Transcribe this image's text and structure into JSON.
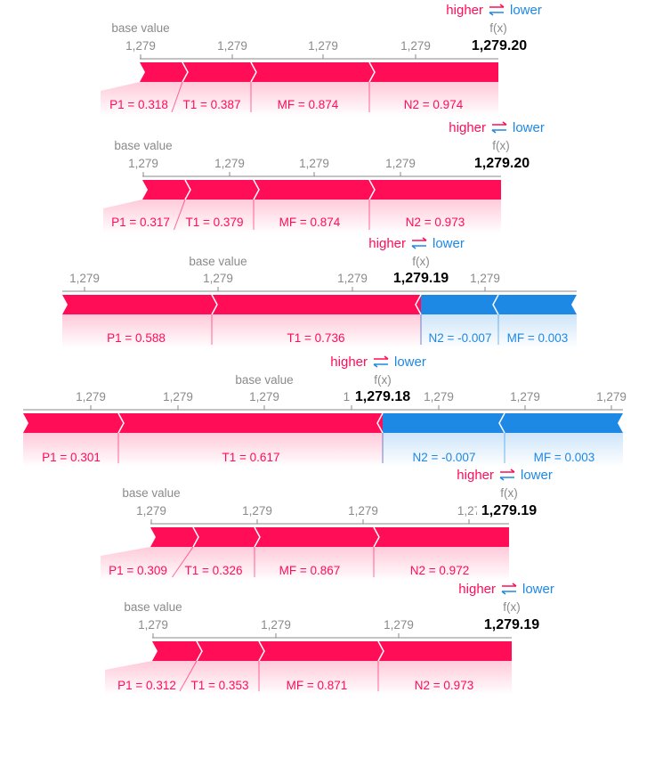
{
  "legend": {
    "higher": "higher",
    "lower": "lower"
  },
  "axis_labels": {
    "base": "base value",
    "fx": "f(x)"
  },
  "colors": {
    "positive": "#ff0d57",
    "negative": "#1e88e5",
    "axis": "#8a8a8a",
    "text": "#000000"
  },
  "chart_data": [
    {
      "type": "bar",
      "fx_label": "1,279.20",
      "ticks": [
        "1,279",
        "1,279",
        "1,279",
        "1,279"
      ],
      "features": [
        {
          "label": "P1 = 0.318",
          "effect": "positive"
        },
        {
          "label": "T1 = 0.387",
          "effect": "positive"
        },
        {
          "label": "MF = 0.874",
          "effect": "positive"
        },
        {
          "label": "N2 = 0.974",
          "effect": "positive"
        }
      ]
    },
    {
      "type": "bar",
      "fx_label": "1,279.20",
      "ticks": [
        "1,279",
        "1,279",
        "1,279",
        "1,279"
      ],
      "features": [
        {
          "label": "P1 = 0.317",
          "effect": "positive"
        },
        {
          "label": "T1 = 0.379",
          "effect": "positive"
        },
        {
          "label": "MF = 0.874",
          "effect": "positive"
        },
        {
          "label": "N2 = 0.973",
          "effect": "positive"
        }
      ]
    },
    {
      "type": "bar",
      "fx_label": "1,279.19",
      "ticks": [
        "1,279",
        "1,279",
        "1,279",
        "1,279"
      ],
      "features": [
        {
          "label": "P1 = 0.588",
          "effect": "positive"
        },
        {
          "label": "T1 = 0.736",
          "effect": "positive"
        },
        {
          "label": "N2 = -0.007",
          "effect": "negative"
        },
        {
          "label": "MF = 0.003",
          "effect": "negative"
        }
      ]
    },
    {
      "type": "bar",
      "fx_label": "1,279.18",
      "ticks": [
        "1,279",
        "1,279",
        "1,279",
        "1,2",
        "1,279",
        "1,279",
        "1,279"
      ],
      "features": [
        {
          "label": "P1 = 0.301",
          "effect": "positive"
        },
        {
          "label": "T1 = 0.617",
          "effect": "positive"
        },
        {
          "label": "N2 = -0.007",
          "effect": "negative"
        },
        {
          "label": "MF = 0.003",
          "effect": "negative"
        }
      ]
    },
    {
      "type": "bar",
      "fx_label": "1,279.19",
      "ticks": [
        "1,279",
        "1,279",
        "1,279",
        "1,27"
      ],
      "features": [
        {
          "label": "P1 = 0.309",
          "effect": "positive"
        },
        {
          "label": "T1 = 0.326",
          "effect": "positive"
        },
        {
          "label": "MF = 0.867",
          "effect": "positive"
        },
        {
          "label": "N2 = 0.972",
          "effect": "positive"
        }
      ]
    },
    {
      "type": "bar",
      "fx_label": "1,279.19",
      "ticks": [
        "1,279",
        "1,279",
        "1,279"
      ],
      "features": [
        {
          "label": "P1 = 0.312",
          "effect": "positive"
        },
        {
          "label": "T1 = 0.353",
          "effect": "positive"
        },
        {
          "label": "MF = 0.871",
          "effect": "positive"
        },
        {
          "label": "N2 = 0.973",
          "effect": "positive"
        }
      ]
    }
  ]
}
